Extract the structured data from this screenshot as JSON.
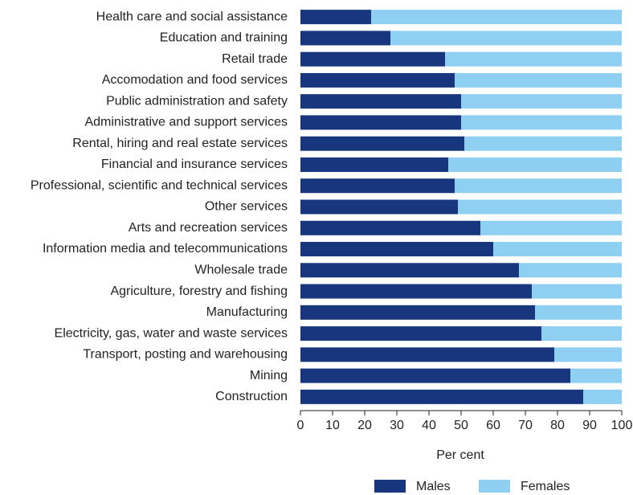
{
  "chart_data": {
    "type": "stacked_barh",
    "categories": [
      "Health care and social assistance",
      "Education and training",
      "Retail trade",
      "Accomodation and food services",
      "Public administration and safety",
      "Administrative and support services",
      "Rental, hiring and real estate services",
      "Financial and insurance services",
      "Professional, scientific and technical services",
      "Other services",
      "Arts and recreation services",
      "Information media and telecommunications",
      "Wholesale trade",
      "Agriculture, forestry and fishing",
      "Manufacturing",
      "Electricity, gas, water and waste services",
      "Transport, posting and warehousing",
      "Mining",
      "Construction"
    ],
    "series": [
      {
        "name": "Males",
        "color": "#17367d",
        "values": [
          22,
          28,
          45,
          48,
          50,
          50,
          51,
          46,
          48,
          49,
          56,
          60,
          68,
          72,
          73,
          75,
          79,
          84,
          88
        ]
      },
      {
        "name": "Females",
        "color": "#8ecff2",
        "values": [
          78,
          72,
          55,
          52,
          50,
          50,
          49,
          54,
          52,
          51,
          44,
          40,
          32,
          28,
          27,
          25,
          21,
          16,
          12
        ]
      }
    ],
    "xlabel": "Per cent",
    "xlim": [
      0,
      100
    ],
    "xticks": [
      0,
      10,
      20,
      30,
      40,
      50,
      60,
      70,
      80,
      90,
      100
    ],
    "legend": "bottom"
  }
}
